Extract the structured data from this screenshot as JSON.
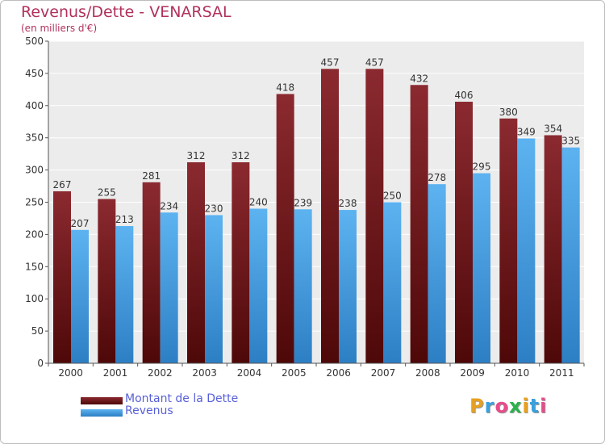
{
  "chart_data": {
    "type": "bar",
    "title": "Revenus/Dette - VENARSAL",
    "subtitle": "(en milliers d'€)",
    "categories": [
      "2000",
      "2001",
      "2002",
      "2003",
      "2004",
      "2005",
      "2006",
      "2007",
      "2008",
      "2009",
      "2010",
      "2011"
    ],
    "series": [
      {
        "name": "Montant de la Dette",
        "values": [
          267,
          255,
          281,
          312,
          312,
          418,
          457,
          457,
          432,
          406,
          380,
          354
        ],
        "color": "#7a1a20"
      },
      {
        "name": "Revenus",
        "values": [
          207,
          213,
          234,
          230,
          240,
          239,
          238,
          250,
          278,
          295,
          349,
          335
        ],
        "color": "#4ea6e6"
      }
    ],
    "ylim": [
      0,
      500
    ],
    "yticks": [
      0,
      50,
      100,
      150,
      200,
      250,
      300,
      350,
      400,
      450,
      500
    ],
    "grid": true,
    "legend_position": "bottom-left",
    "data_labels": true
  },
  "logo": {
    "text": "Proxiti",
    "letters": [
      "P",
      "r",
      "o",
      "x",
      "i",
      "t",
      "i"
    ],
    "colors": [
      "#e8a020",
      "#3aa0dd",
      "#e74c8b",
      "#2bb24c",
      "#e8a020",
      "#3aa0dd",
      "#e74c8b"
    ]
  }
}
